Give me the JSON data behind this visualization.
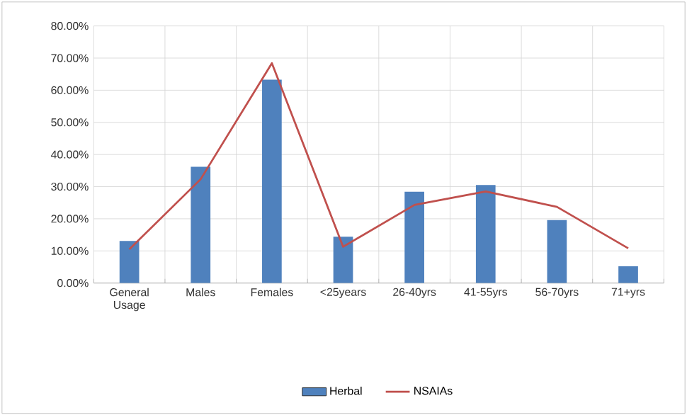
{
  "chart_data": {
    "type": "bar",
    "categories": [
      "General Usage",
      "Males",
      "Females",
      "<25years",
      "26-40yrs",
      "41-55yrs",
      "56-70yrs",
      "71+yrs"
    ],
    "series": [
      {
        "name": "Herbal",
        "color": "#4f81bd",
        "values": [
          13.1,
          36.2,
          63.3,
          14.4,
          28.4,
          30.5,
          19.6,
          5.2
        ]
      },
      {
        "name": "NSAIAs",
        "type": "line",
        "color": "#c0504d",
        "values": [
          10.5,
          32.3,
          68.4,
          11.3,
          24.3,
          28.5,
          23.7,
          10.8
        ]
      }
    ],
    "ylim": [
      0,
      80
    ],
    "yticks": [
      {
        "value": 0,
        "label": "0.00%"
      },
      {
        "value": 10,
        "label": "10.00%"
      },
      {
        "value": 20,
        "label": "20.00%"
      },
      {
        "value": 30,
        "label": "30.00%"
      },
      {
        "value": 40,
        "label": "40.00%"
      },
      {
        "value": 50,
        "label": "50.00%"
      },
      {
        "value": 60,
        "label": "60.00%"
      },
      {
        "value": 70,
        "label": "70.00%"
      },
      {
        "value": 80,
        "label": "80.00%"
      }
    ],
    "grid": true,
    "legend": "bottom"
  }
}
